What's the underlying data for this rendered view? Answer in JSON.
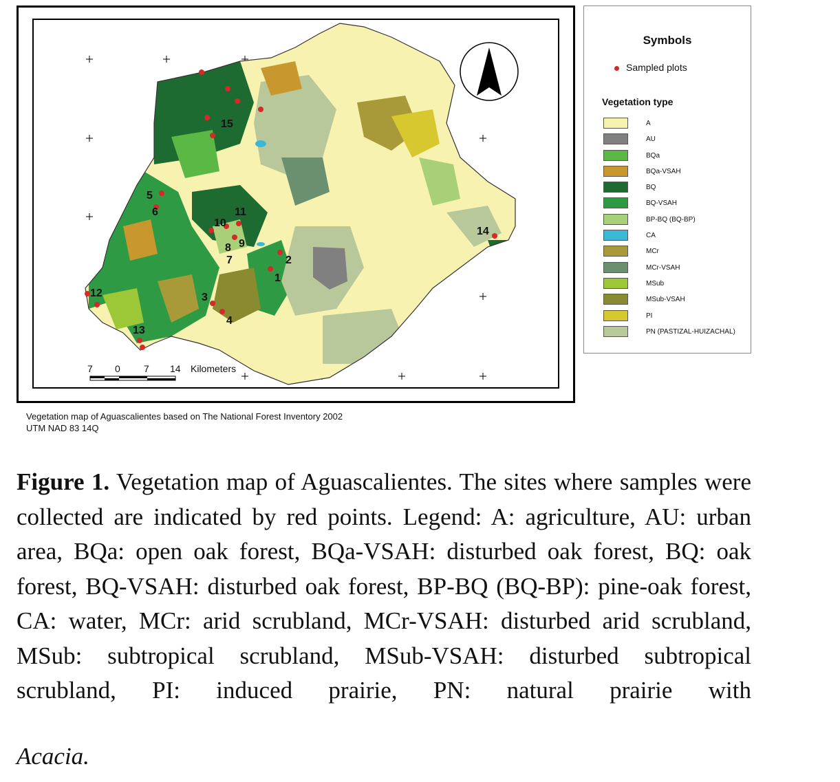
{
  "map": {
    "region_labels": [
      "15",
      "5",
      "6",
      "10",
      "11",
      "8",
      "9",
      "7",
      "2",
      "1",
      "3",
      "4",
      "12",
      "13",
      "14"
    ],
    "scale_bar": {
      "ticks": [
        "7",
        "0",
        "7",
        "14"
      ],
      "unit": "Kilometers"
    },
    "colors": {
      "A": "#f8f2b0",
      "AU": "#808080",
      "BQa": "#5cb844",
      "BQa-VSAH": "#c8982e",
      "BQ": "#1d6b30",
      "BQ-VSAH": "#2f9a44",
      "BP-BQ": "#a8d078",
      "CA": "#3bb8d8",
      "MCr": "#a89a38",
      "MCr-VSAH": "#6a9070",
      "MSub": "#9cc838",
      "MSub-VSAH": "#8a8a30",
      "PI": "#d8c830",
      "PN": "#b8c89a",
      "sample_point": "#d42a2a"
    },
    "north_arrow_icon": "north-arrow-icon"
  },
  "legend": {
    "title": "Symbols",
    "sampled_label": "Sampled plots",
    "vegetation_heading": "Vegetation type",
    "items": [
      {
        "code": "A",
        "color": "#f8f2b0"
      },
      {
        "code": "AU",
        "color": "#808080"
      },
      {
        "code": "BQa",
        "color": "#5cb844"
      },
      {
        "code": "BQa-VSAH",
        "color": "#c8982e"
      },
      {
        "code": "BQ",
        "color": "#1d6b30"
      },
      {
        "code": "BQ-VSAH",
        "color": "#2f9a44"
      },
      {
        "code": "BP-BQ (BQ-BP)",
        "color": "#a8d078"
      },
      {
        "code": "CA",
        "color": "#3bb8d8"
      },
      {
        "code": "MCr",
        "color": "#a89a38"
      },
      {
        "code": "MCr-VSAH",
        "color": "#6a9070"
      },
      {
        "code": "MSub",
        "color": "#9cc838"
      },
      {
        "code": "MSub-VSAH",
        "color": "#8a8a30"
      },
      {
        "code": "PI",
        "color": "#d8c830"
      },
      {
        "code": "PN (PASTIZAL-HUIZACHAL)",
        "color": "#b8c89a"
      }
    ]
  },
  "map_caption": {
    "line1": "Vegetation map of Aguascalientes based on The National Forest Inventory 2002",
    "line2": "UTM NAD 83 14Q"
  },
  "figure_caption": {
    "label": "Figure 1.",
    "text": " Vegetation map of Aguascalientes. The sites where samples were collected are indicated by red points. Legend: A: agriculture, AU: urban area, BQa: open oak forest, BQa-VSAH: disturbed oak forest, BQ: oak forest, BQ-VSAH: disturbed oak forest, BP-BQ (BQ-BP): pine-oak forest, CA: water, MCr: arid scrubland, MCr-VSAH: disturbed arid scrubland, MSub: subtropical scrubland, MSub-VSAH: disturbed subtropical scrubland, PI: induced prairie, PN: natural prairie with",
    "last_word": "Acacia."
  }
}
